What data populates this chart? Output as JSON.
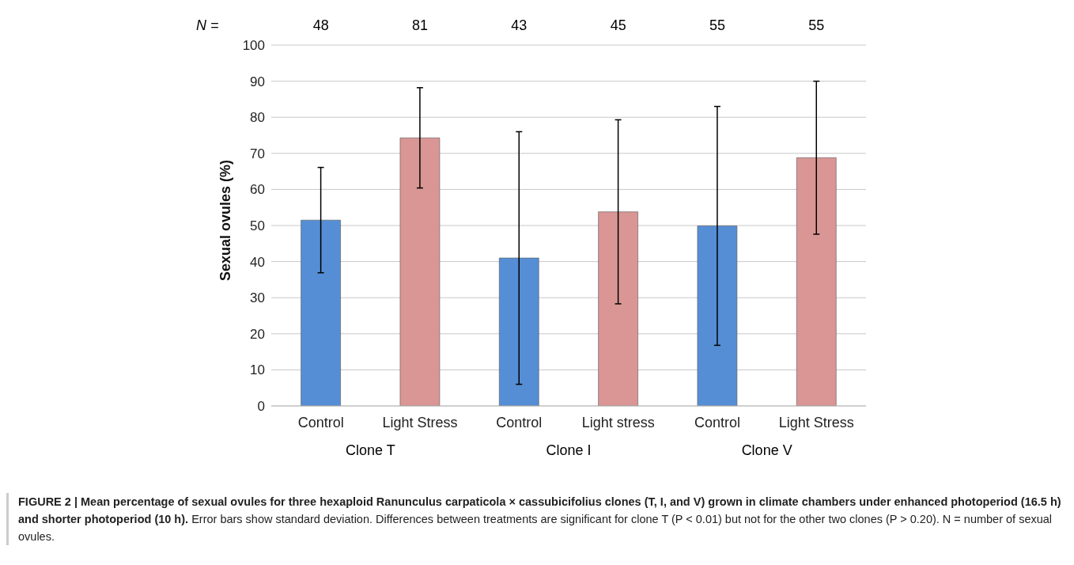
{
  "chart_data": {
    "type": "bar",
    "title": "FIGURE 2 | Mean percentage of sexual ovules for three hexaploid Ranunculus carpaticola × cassubicifolius clones (T, I, and V) grown in climate chambers under enhanced photoperiod (16.5 h) and shorter photoperiod (10 h).",
    "ylabel": "Sexual ovules (%)",
    "categories": [
      "Control",
      "Light Stress",
      "Control",
      "Light stress",
      "Control",
      "Light Stress"
    ],
    "values": [
      51.5,
      74.3,
      41,
      53.8,
      49.9,
      68.8
    ],
    "errors": [
      14.6,
      13.9,
      35,
      25.5,
      33.1,
      21.2
    ],
    "colors": [
      "#558ed5",
      "#d99694",
      "#558ed5",
      "#d99694",
      "#558ed5",
      "#d99694"
    ],
    "ylim": [
      0,
      100
    ],
    "yticks": [
      0,
      10,
      20,
      30,
      40,
      50,
      60,
      70,
      80,
      90,
      100
    ],
    "grid": "y",
    "legend": false,
    "annotations": [
      "N =",
      "48",
      "81",
      "43",
      "45",
      "55",
      "55",
      "Clone T",
      "Clone I",
      "Clone V",
      "Error bars show standard deviation. Differences between treatments are significant for clone T (P < 0.01) but not for the other two clones (P > 0.20). N = number of sexual ovules."
    ]
  }
}
